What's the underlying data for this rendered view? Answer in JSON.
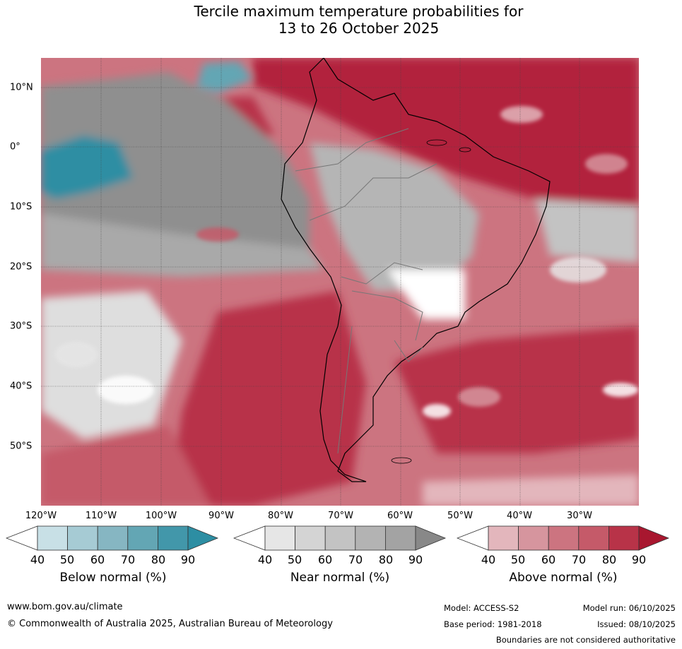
{
  "title": {
    "line1": "Tercile maximum temperature probabilities for",
    "line2": "13 to 26 October 2025"
  },
  "map": {
    "region": "South America and surrounding oceans",
    "lat_labels": [
      "10°N",
      "0°",
      "10°S",
      "20°S",
      "30°S",
      "40°S",
      "50°S"
    ],
    "lon_labels": [
      "120°W",
      "110°W",
      "100°W",
      "90°W",
      "80°W",
      "70°W",
      "60°W",
      "50°W",
      "40°W",
      "30°W"
    ]
  },
  "legends": [
    {
      "title": "Below normal (%)",
      "ticks": [
        "40",
        "50",
        "60",
        "70",
        "80",
        "90"
      ],
      "colors": [
        "#ffffff",
        "#c8e0e6",
        "#a6cbd4",
        "#86b6c2",
        "#63a6b4",
        "#4297aa",
        "#2d8ea3"
      ]
    },
    {
      "title": "Near normal (%)",
      "ticks": [
        "40",
        "50",
        "60",
        "70",
        "80",
        "90"
      ],
      "colors": [
        "#ffffff",
        "#e6e6e6",
        "#d4d4d4",
        "#c3c3c3",
        "#b3b3b3",
        "#a3a3a3",
        "#888888"
      ]
    },
    {
      "title": "Above normal (%)",
      "ticks": [
        "40",
        "50",
        "60",
        "70",
        "80",
        "90"
      ],
      "colors": [
        "#ffffff",
        "#e3b6bc",
        "#d6959e",
        "#cc7480",
        "#c55a69",
        "#b83348",
        "#a8172f"
      ]
    }
  ],
  "footer": {
    "url": "www.bom.gov.au/climate",
    "copyright": "© Commonwealth of Australia 2025, Australian Bureau of Meteorology",
    "model": "Model: ACCESS-S2",
    "base_period": "Base period: 1981-2018",
    "model_run": "Model run: 06/10/2025",
    "issued": "Issued: 08/10/2025",
    "disclaimer": "Boundaries are not considered authoritative"
  }
}
